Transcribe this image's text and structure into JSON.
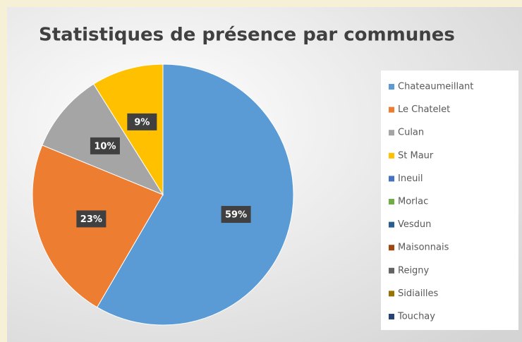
{
  "chart_data": {
    "type": "pie",
    "title": "Statistiques de présence par communes",
    "categories": [
      "Chateaumeillant",
      "Le Chatelet",
      "Culan",
      "St Maur",
      "Ineuil",
      "Morlac",
      "Vesdun",
      "Maisonnais",
      "Reigny",
      "Sidiailles",
      "Touchay"
    ],
    "values": [
      59,
      23,
      10,
      9,
      0,
      0,
      0,
      0,
      0,
      0,
      0
    ],
    "value_labels": [
      "59%",
      "23%",
      "10%",
      "9%",
      null,
      null,
      null,
      null,
      null,
      null,
      null
    ],
    "colors": [
      "#5b9bd5",
      "#ed7d31",
      "#a5a5a5",
      "#ffc000",
      "#4472c4",
      "#70ad47",
      "#255e91",
      "#9e480e",
      "#636363",
      "#997300",
      "#264478"
    ],
    "legend": "right"
  }
}
